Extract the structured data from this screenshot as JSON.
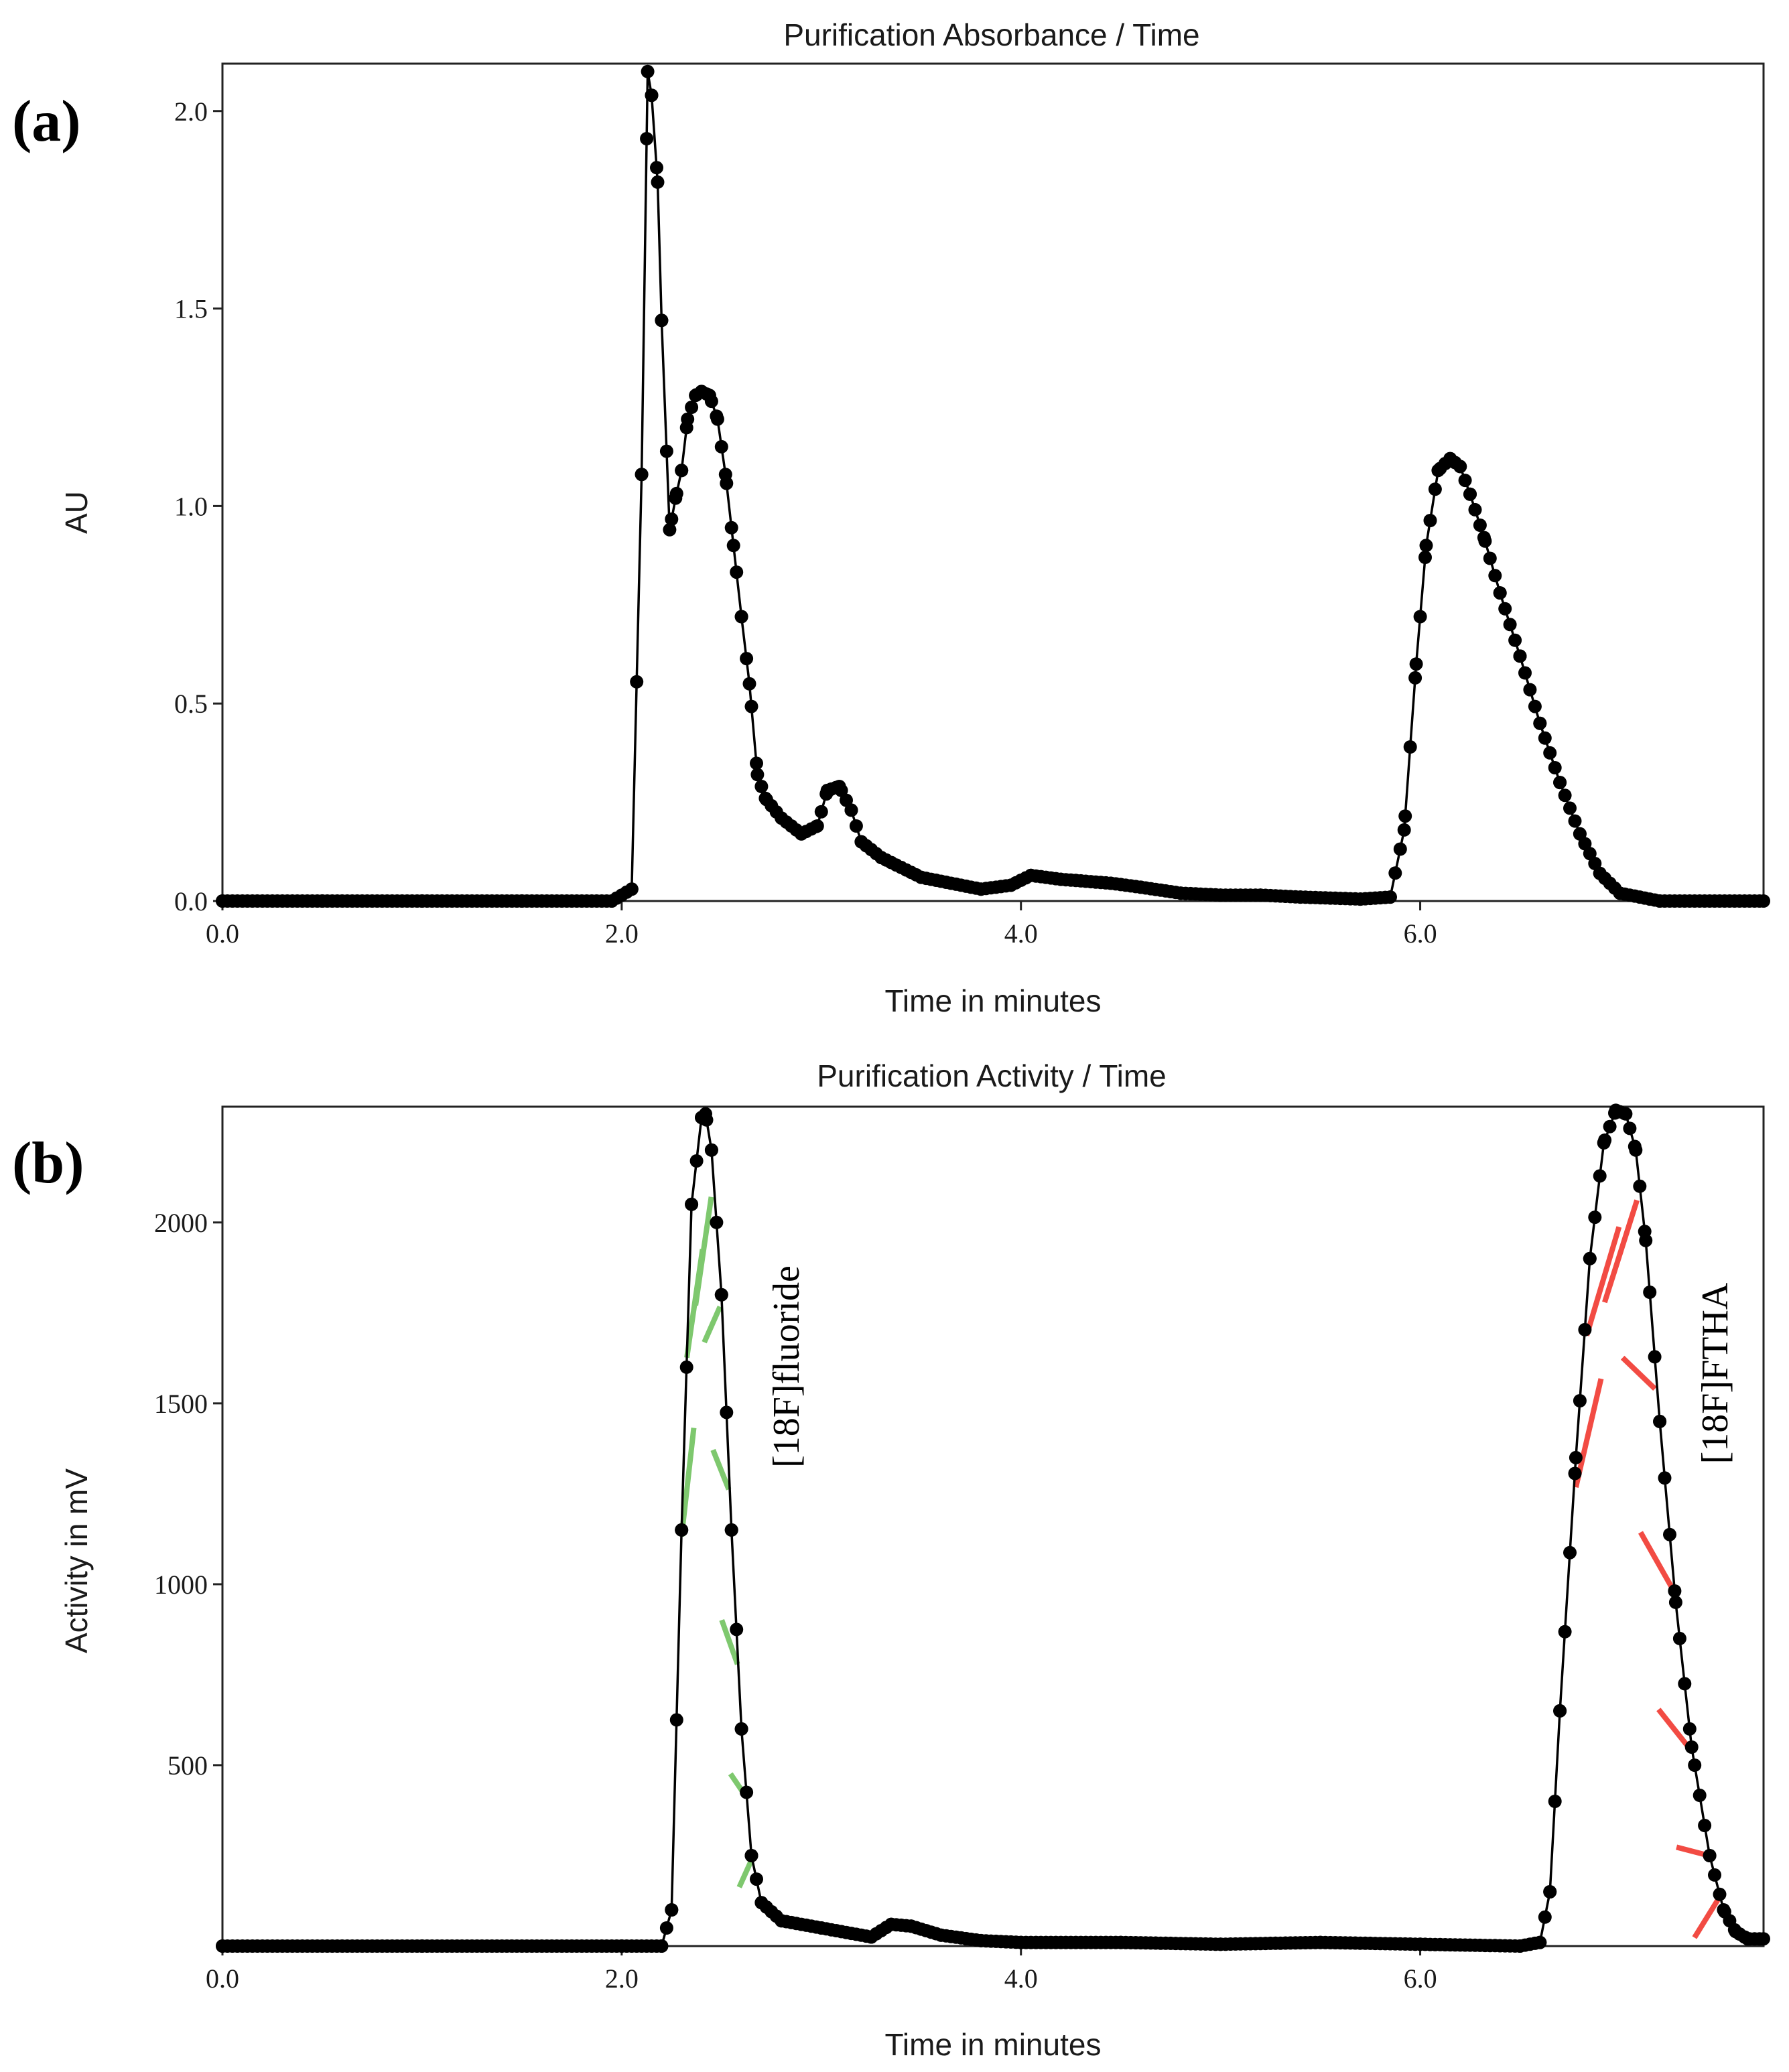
{
  "chart_data": [
    {
      "panel_label": "(a)",
      "type": "line",
      "title": "Purification Absorbance / Time",
      "xlabel": "Time in minutes",
      "ylabel": "AU",
      "xlim": [
        0,
        7.72
      ],
      "ylim": [
        0,
        2.12
      ],
      "xticks": [
        0,
        2,
        4,
        6
      ],
      "xtick_labels": [
        "0.0",
        "2.0",
        "4.0",
        "6.0"
      ],
      "yticks": [
        0,
        0.5,
        1.0,
        1.5,
        2.0
      ],
      "ytick_labels": [
        "0.0",
        "0.5",
        "1.0",
        "1.5",
        "2.0"
      ],
      "grid": false,
      "markers": true,
      "x": [
        0.0,
        0.5,
        1.0,
        1.5,
        1.95,
        2.05,
        2.1,
        2.13,
        2.15,
        2.18,
        2.2,
        2.24,
        2.27,
        2.3,
        2.33,
        2.37,
        2.4,
        2.44,
        2.48,
        2.52,
        2.56,
        2.6,
        2.64,
        2.68,
        2.72,
        2.8,
        2.9,
        2.98,
        3.03,
        3.09,
        3.15,
        3.2,
        3.3,
        3.5,
        3.8,
        3.95,
        4.05,
        4.2,
        4.45,
        4.6,
        4.8,
        5.0,
        5.2,
        5.4,
        5.7,
        5.85,
        5.92,
        5.98,
        6.03,
        6.09,
        6.15,
        6.2,
        6.25,
        6.32,
        6.4,
        6.5,
        6.6,
        6.7,
        6.8,
        6.9,
        7.0,
        7.2,
        7.72
      ],
      "y": [
        0.0,
        0.0,
        0.0,
        0.0,
        0.0,
        0.03,
        1.08,
        2.1,
        2.04,
        1.82,
        1.47,
        0.94,
        1.02,
        1.09,
        1.22,
        1.28,
        1.29,
        1.28,
        1.22,
        1.08,
        0.9,
        0.72,
        0.55,
        0.32,
        0.26,
        0.21,
        0.17,
        0.19,
        0.28,
        0.29,
        0.23,
        0.15,
        0.11,
        0.06,
        0.03,
        0.04,
        0.065,
        0.055,
        0.045,
        0.035,
        0.02,
        0.015,
        0.015,
        0.01,
        0.005,
        0.01,
        0.18,
        0.6,
        0.9,
        1.09,
        1.12,
        1.1,
        1.03,
        0.92,
        0.78,
        0.62,
        0.45,
        0.3,
        0.17,
        0.07,
        0.02,
        0.0,
        0.0
      ]
    },
    {
      "panel_label": "(b)",
      "type": "line",
      "title": "Purification Activity / Time",
      "xlabel": "Time in minutes",
      "ylabel": "Activity in mV",
      "xlim": [
        0,
        7.72
      ],
      "ylim": [
        0,
        2320
      ],
      "xticks": [
        0,
        2,
        4,
        6
      ],
      "xtick_labels": [
        "0.0",
        "2.0",
        "4.0",
        "6.0"
      ],
      "yticks": [
        500,
        1000,
        1500,
        2000
      ],
      "ytick_labels": [
        "500",
        "1000",
        "1500",
        "2000"
      ],
      "grid": false,
      "markers": true,
      "x": [
        0.0,
        1.0,
        2.0,
        2.2,
        2.25,
        2.3,
        2.35,
        2.4,
        2.42,
        2.45,
        2.5,
        2.55,
        2.6,
        2.65,
        2.7,
        2.8,
        3.0,
        3.25,
        3.35,
        3.45,
        3.6,
        3.8,
        4.0,
        4.5,
        5.0,
        5.5,
        6.0,
        6.5,
        6.6,
        6.65,
        6.7,
        6.78,
        6.85,
        6.92,
        6.98,
        7.03,
        7.08,
        7.13,
        7.2,
        7.28,
        7.36,
        7.45,
        7.52,
        7.58,
        7.64,
        7.72
      ],
      "y": [
        0,
        0,
        0,
        0,
        100,
        1150,
        2050,
        2290,
        2300,
        2200,
        1800,
        1150,
        600,
        250,
        120,
        70,
        50,
        25,
        60,
        55,
        30,
        15,
        10,
        10,
        5,
        10,
        5,
        0,
        10,
        150,
        650,
        1350,
        1900,
        2220,
        2310,
        2300,
        2200,
        1950,
        1450,
        950,
        550,
        250,
        100,
        40,
        20,
        20
      ]
    }
  ],
  "annotations": {
    "fluoride_label": "[18F]fluoride",
    "ftha_label": "[18F]FTHA",
    "fluoride_color": "#7ec86e",
    "ftha_color": "#f24b43",
    "fluoride_range": [
      2.3,
      2.65
    ],
    "ftha_range": [
      6.78,
      7.5
    ]
  }
}
